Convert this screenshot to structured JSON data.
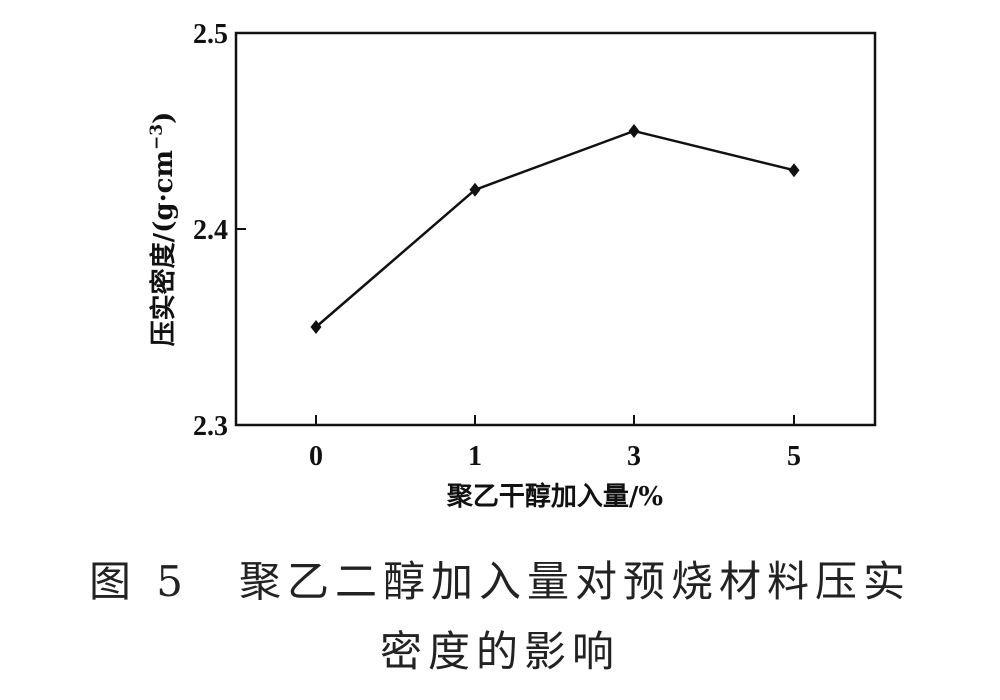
{
  "chart_data": {
    "type": "line",
    "categories": [
      "0",
      "1",
      "3",
      "5"
    ],
    "series": [
      {
        "values": [
          2.35,
          2.42,
          2.45,
          2.43
        ]
      }
    ],
    "xlabel": "聚乙干醇加入量/%",
    "ylabel": "压实密度/(g·cm",
    "ylabel_superscript": "−3",
    "ylabel_close": ")",
    "ylim": [
      2.3,
      2.5
    ],
    "yticks": [
      "2.3",
      "2.4",
      "2.5"
    ],
    "marker": "diamond",
    "line_color": "#111111",
    "grid": false
  },
  "caption": {
    "label": "图 5",
    "text_line1": "聚乙二醇加入量对预烧材料压实",
    "text_line2": "密度的影响"
  }
}
